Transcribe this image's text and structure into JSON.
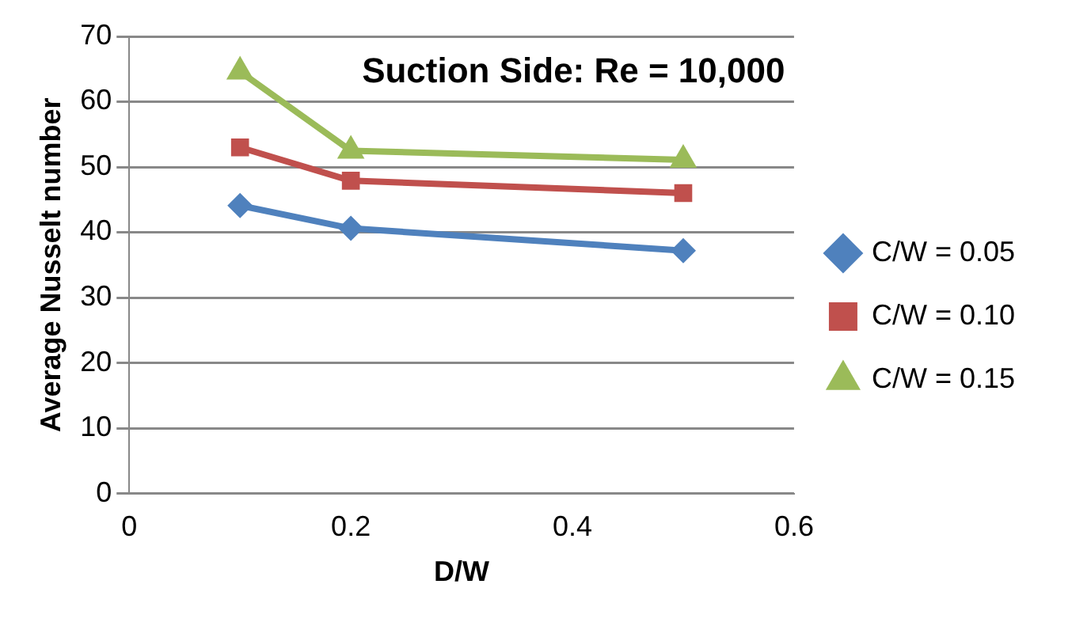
{
  "chart_data": {
    "type": "line",
    "title": "Suction Side: Re = 10,000",
    "xlabel": "D/W",
    "ylabel": "Average Nusselt number",
    "x": [
      0.1,
      0.2,
      0.5
    ],
    "xlim": [
      0,
      0.6
    ],
    "xticks": [
      0,
      0.2,
      0.4,
      0.6
    ],
    "ylim": [
      0,
      70
    ],
    "yticks": [
      0,
      10,
      20,
      30,
      40,
      50,
      60,
      70
    ],
    "grid": "y",
    "legend": "right",
    "series": [
      {
        "name": "C/W = 0.05",
        "color": "#4f81bd",
        "marker": "diamond",
        "values": [
          44.1,
          40.6,
          37.2
        ]
      },
      {
        "name": "C/W = 0.10",
        "color": "#c0504d",
        "marker": "square",
        "values": [
          53.0,
          47.9,
          46.0
        ]
      },
      {
        "name": "C/W = 0.15",
        "color": "#9bbb59",
        "marker": "triangle",
        "values": [
          64.6,
          52.5,
          51.1
        ]
      }
    ]
  }
}
